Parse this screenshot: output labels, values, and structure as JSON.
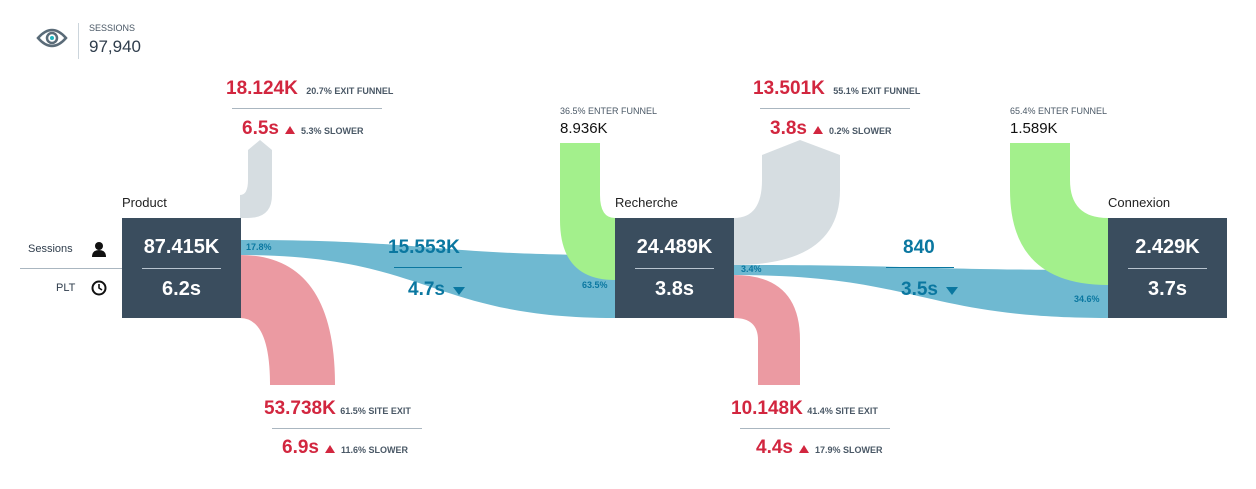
{
  "header": {
    "label": "SESSIONS",
    "value": "97,940"
  },
  "rows": {
    "sessions": "Sessions",
    "plt": "PLT"
  },
  "nodes": [
    {
      "name": "Product",
      "sessions": "87.415K",
      "plt": "6.2s"
    },
    {
      "name": "Recherche",
      "sessions": "24.489K",
      "plt": "3.8s"
    },
    {
      "name": "Connexion",
      "sessions": "2.429K",
      "plt": "3.7s"
    }
  ],
  "exits": [
    {
      "value": "18.124K",
      "pct": "20.7% EXIT FUNNEL",
      "time": "6.5s",
      "delta": "5.3% SLOWER"
    },
    {
      "value": "13.501K",
      "pct": "55.1% EXIT FUNNEL",
      "time": "3.8s",
      "delta": "0.2% SLOWER"
    }
  ],
  "site_exits": [
    {
      "value": "53.738K",
      "pct": "61.5% SITE EXIT",
      "time": "6.9s",
      "delta": "11.6% SLOWER"
    },
    {
      "value": "10.148K",
      "pct": "41.4% SITE EXIT",
      "time": "4.4s",
      "delta": "17.9% SLOWER"
    }
  ],
  "enters": [
    {
      "pct": "36.5% ENTER FUNNEL",
      "value": "8.936K"
    },
    {
      "pct": "65.4% ENTER FUNNEL",
      "value": "1.589K"
    }
  ],
  "links": [
    {
      "value": "15.553K",
      "time": "4.7s",
      "out_pct": "17.8%",
      "in_pct": "63.5%"
    },
    {
      "value": "840",
      "time": "3.5s",
      "out_pct": "3.4%",
      "in_pct": "34.6%"
    }
  ],
  "colors": {
    "box": "#3a4d5e",
    "exit": "#d6dde1",
    "site_exit": "#eb9aa2",
    "enter": "#a3f08c",
    "link": "#6fb9d1",
    "red": "#d2263f",
    "blue": "#0a77a0"
  }
}
